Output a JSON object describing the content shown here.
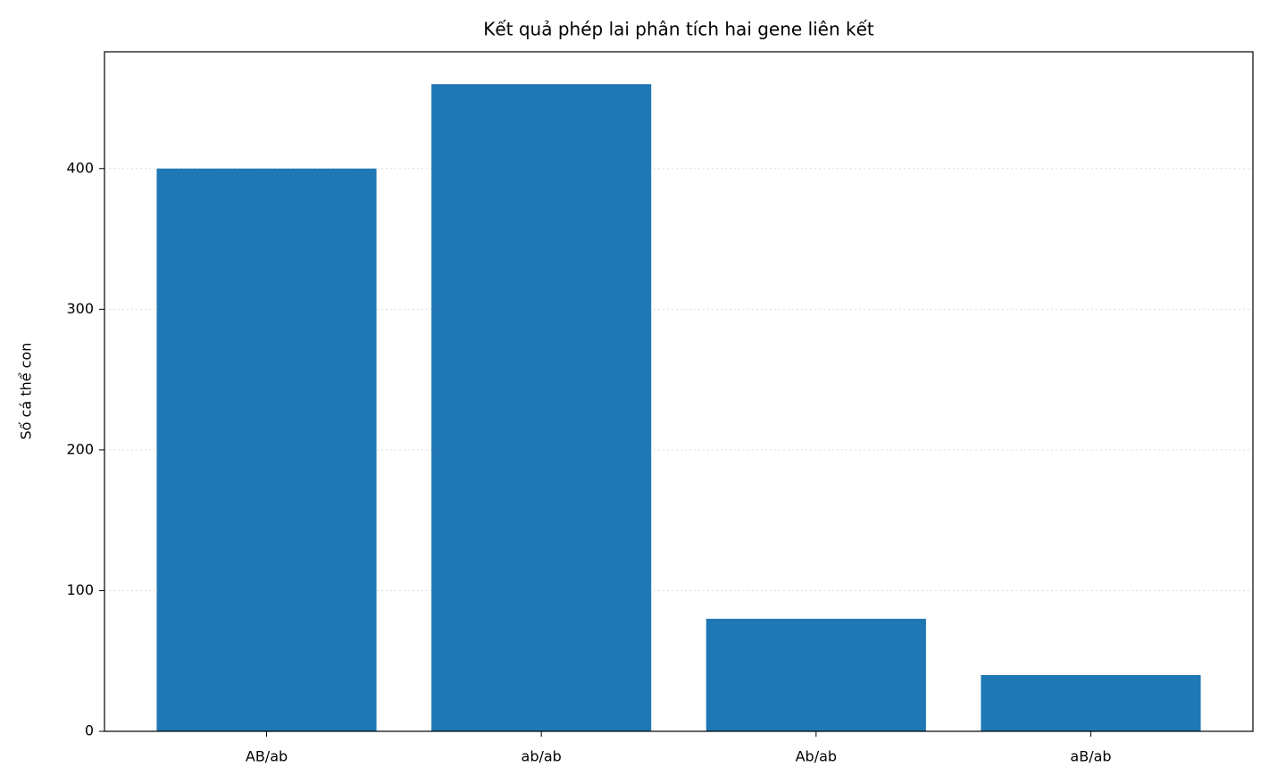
{
  "chart_data": {
    "type": "bar",
    "title": "Kết quả phép lai phân tích hai gene liên kết",
    "ylabel": "Số cá thể con",
    "categories": [
      "AB/ab",
      "ab/ab",
      "Ab/ab",
      "aB/ab"
    ],
    "values": [
      400,
      460,
      80,
      40
    ],
    "color": "#1f77b4",
    "ylim": [
      0,
      483
    ],
    "yticks": [
      0,
      100,
      200,
      300,
      400
    ],
    "grid": true
  }
}
